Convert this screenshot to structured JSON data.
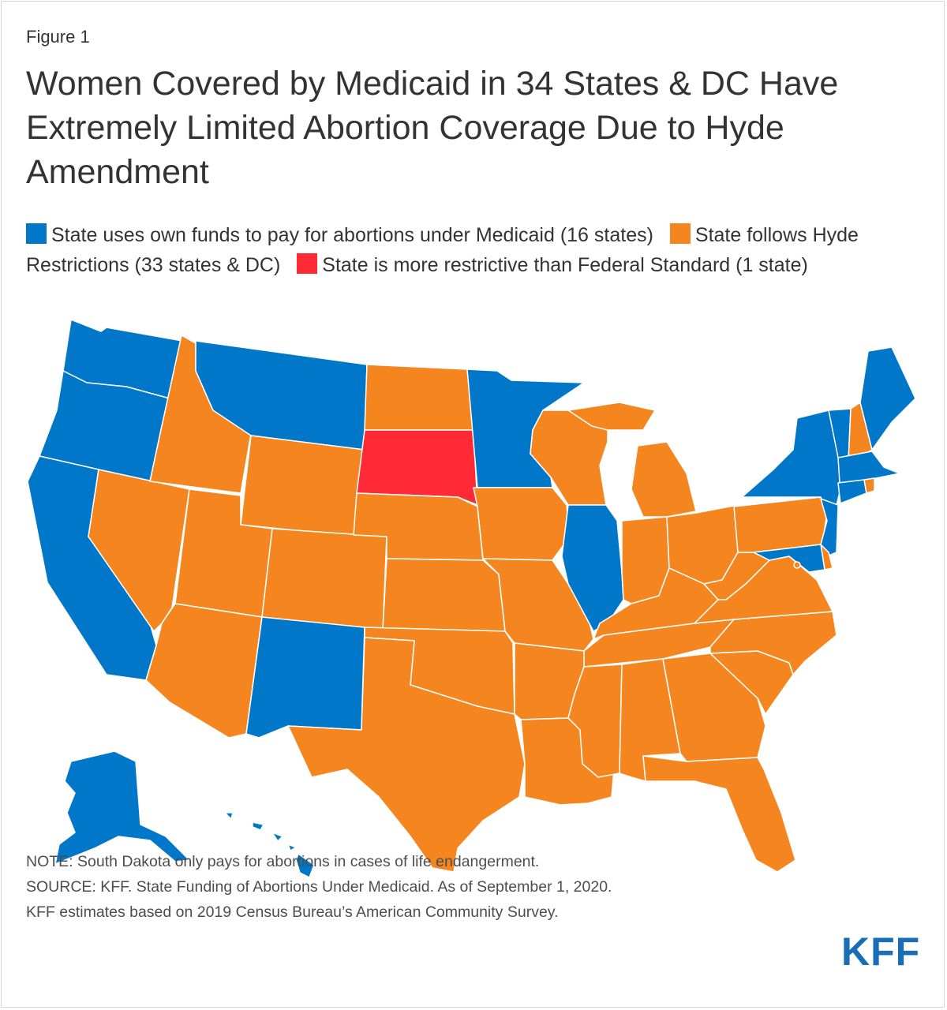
{
  "figure_label": "Figure 1",
  "title": "Women Covered by Medicaid in 34 States & DC Have Extremely Limited Abortion Coverage Due to Hyde Amendment",
  "colors": {
    "own_funds": "#0077c8",
    "hyde": "#f5861f",
    "restrictive": "#ff2a36"
  },
  "legend": [
    {
      "key": "own_funds",
      "label": "State uses own funds to pay for abortions under Medicaid (16 states)"
    },
    {
      "key": "hyde",
      "label": "State follows Hyde Restrictions (33 states & DC)"
    },
    {
      "key": "restrictive",
      "label": "State is more restrictive than Federal Standard (1 state)"
    }
  ],
  "states": {
    "own_funds": [
      "Alaska",
      "California",
      "Connecticut",
      "Hawaii",
      "Illinois",
      "Maine",
      "Maryland",
      "Massachusetts",
      "Minnesota",
      "Montana",
      "New Jersey",
      "New Mexico",
      "New York",
      "Oregon",
      "Vermont",
      "Washington"
    ],
    "hyde": [
      "Alabama",
      "Arizona",
      "Arkansas",
      "Colorado",
      "Delaware",
      "District of Columbia",
      "Florida",
      "Georgia",
      "Idaho",
      "Indiana",
      "Iowa",
      "Kansas",
      "Kentucky",
      "Louisiana",
      "Michigan",
      "Mississippi",
      "Missouri",
      "Nebraska",
      "Nevada",
      "New Hampshire",
      "North Carolina",
      "North Dakota",
      "Ohio",
      "Oklahoma",
      "Pennsylvania",
      "Rhode Island",
      "South Carolina",
      "Tennessee",
      "Texas",
      "Utah",
      "Virginia",
      "West Virginia",
      "Wisconsin",
      "Wyoming"
    ],
    "restrictive": [
      "South Dakota"
    ]
  },
  "notes": [
    "NOTE: South Dakota only pays for abortions in cases of life endangerment.",
    "SOURCE: KFF. State Funding of Abortions Under Medicaid. As of September 1, 2020.",
    "KFF estimates based on 2019 Census Bureau’s American Community Survey."
  ],
  "logo": "KFF"
}
